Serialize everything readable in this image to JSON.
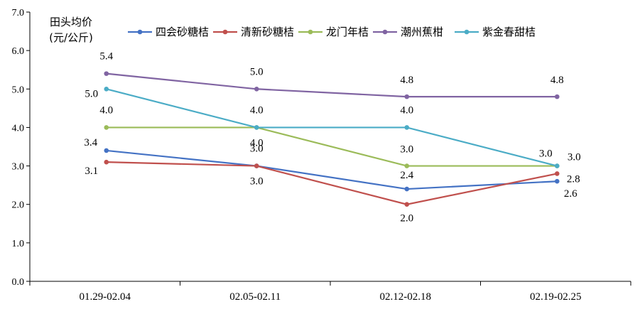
{
  "chart_data": {
    "type": "line",
    "title": "",
    "ylabel": "田头均价",
    "ylabel_unit": "(元/公斤)",
    "xlabel": "",
    "categories": [
      "01.29-02.04",
      "02.05-02.11",
      "02.12-02.18",
      "02.19-02.25"
    ],
    "ylim": [
      0,
      7
    ],
    "yticks": [
      "0.0",
      "1.0",
      "2.0",
      "3.0",
      "4.0",
      "5.0",
      "6.0",
      "7.0"
    ],
    "grid": false,
    "legend_position": "top",
    "series": [
      {
        "name": "四会砂糖桔",
        "color": "#4472C4",
        "values": [
          3.4,
          3.0,
          2.4,
          2.6
        ]
      },
      {
        "name": "清新砂糖桔",
        "color": "#C0504D",
        "values": [
          3.1,
          3.0,
          2.0,
          2.8
        ]
      },
      {
        "name": "龙门年桔",
        "color": "#9BBB59",
        "values": [
          4.0,
          4.0,
          3.0,
          3.0
        ]
      },
      {
        "name": "潮州蕉柑",
        "color": "#8064A2",
        "values": [
          5.4,
          5.0,
          4.8,
          4.8
        ]
      },
      {
        "name": "紫金春甜桔",
        "color": "#4BACC6",
        "values": [
          5.0,
          4.0,
          4.0,
          3.0
        ]
      }
    ]
  }
}
